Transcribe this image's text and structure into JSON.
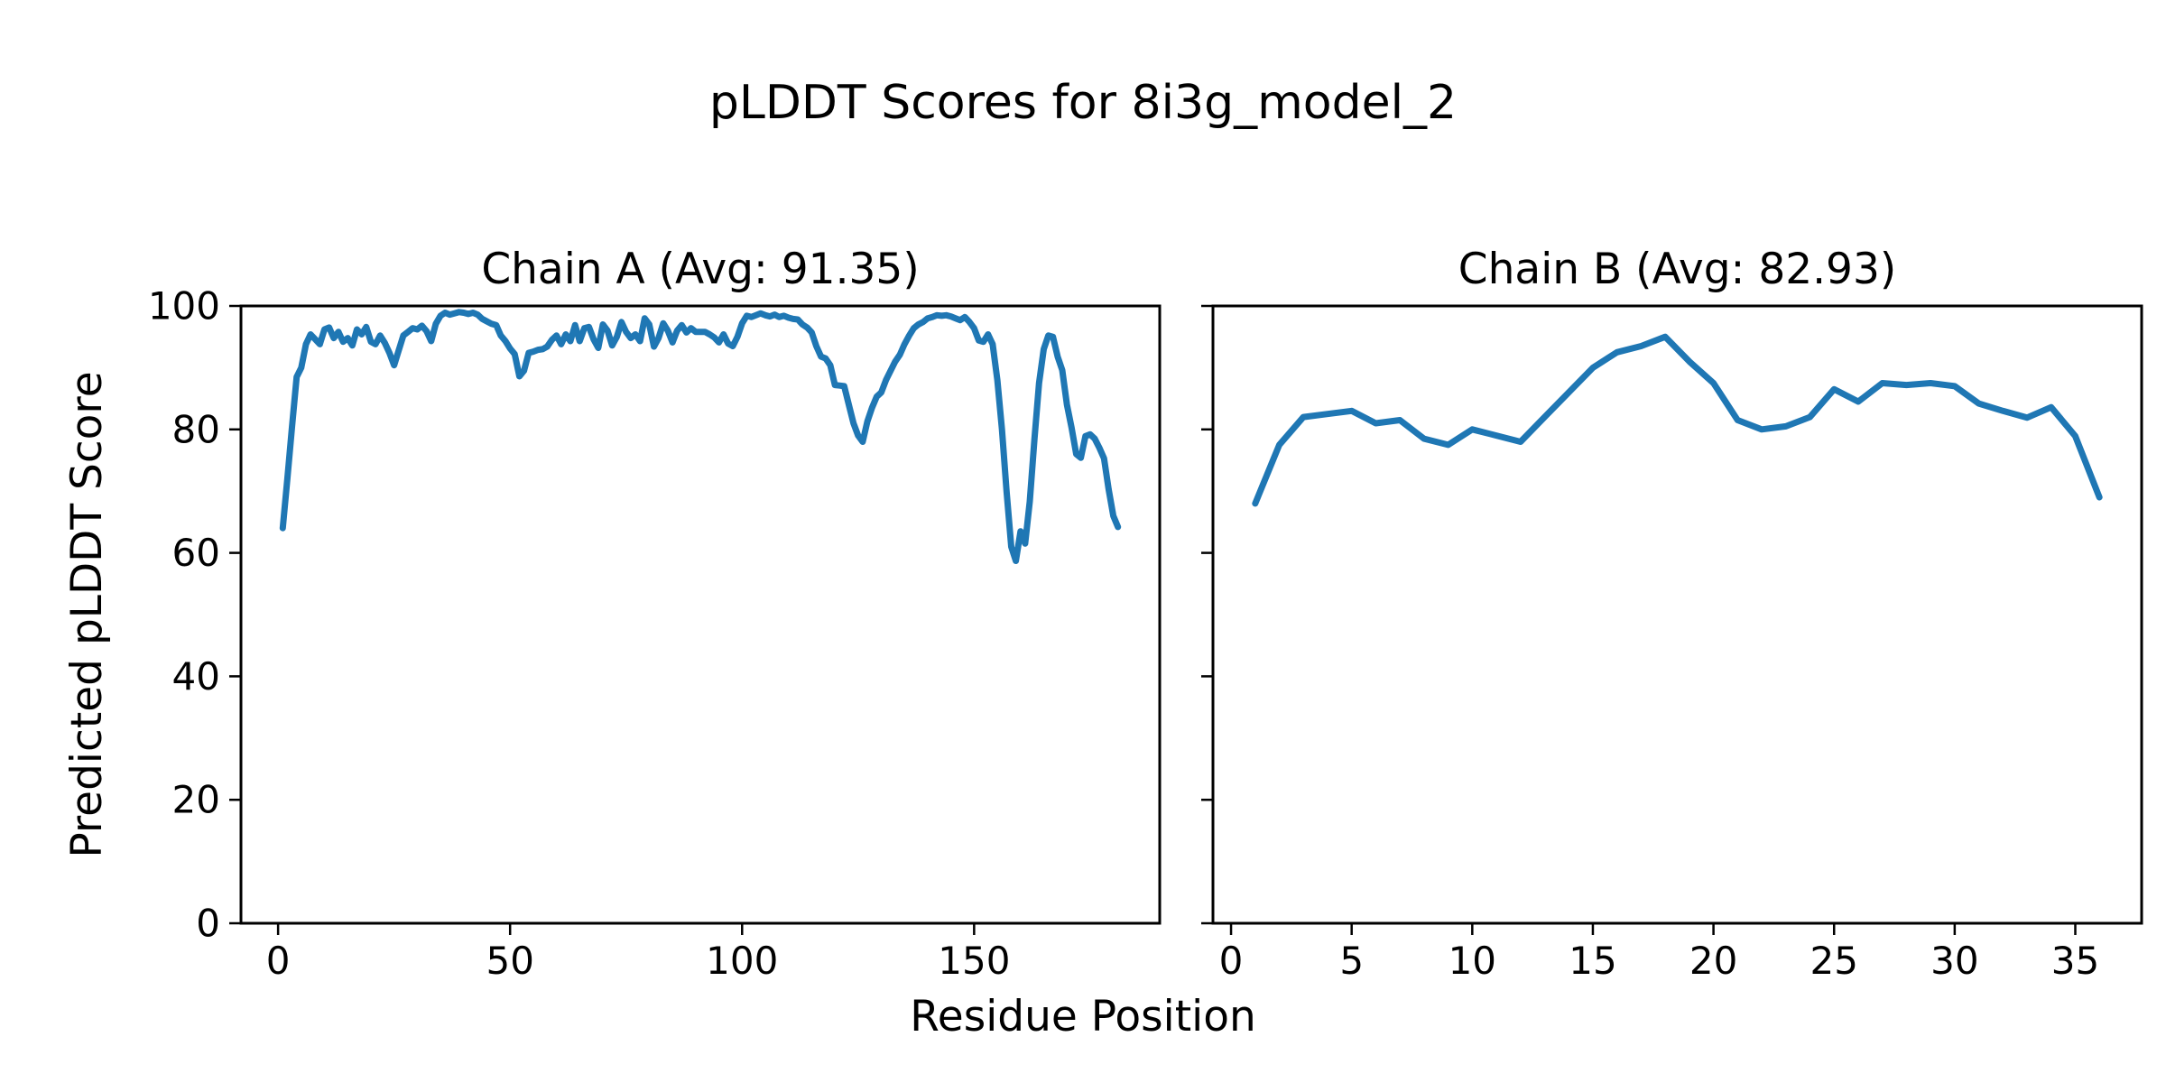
{
  "figure": {
    "title": "pLDDT Scores for 8i3g_model_2",
    "xlabel": "Residue Position",
    "ylabel": "Predicted pLDDT Score",
    "line_color": "#1f77b4",
    "axis_color": "#000000",
    "background": "#ffffff"
  },
  "chart_data": [
    {
      "type": "line",
      "title": "Chain A (Avg: 91.35)",
      "chain": "Chain A",
      "avg": 91.35,
      "xlabel": "Residue Position",
      "ylabel": "Predicted pLDDT Score",
      "xlim": [
        -8,
        190
      ],
      "ylim": [
        0,
        100
      ],
      "xticks": [
        0,
        50,
        100,
        150
      ],
      "yticks": [
        0,
        20,
        40,
        60,
        80,
        100
      ],
      "grid": false,
      "legend": null,
      "x_start": 1,
      "values": [
        64,
        72,
        80.5,
        88.5,
        90,
        93.8,
        95.4,
        94.6,
        93.8,
        96.2,
        96.5,
        94.8,
        95.8,
        94.2,
        94.8,
        93.6,
        96.2,
        95.4,
        96.6,
        94.2,
        93.8,
        95.2,
        94,
        92.4,
        90.4,
        92.8,
        95.2,
        95.8,
        96.4,
        96.2,
        96.8,
        95.9,
        94.3,
        97.1,
        98.4,
        98.9,
        98.6,
        98.8,
        99,
        98.9,
        98.7,
        98.9,
        98.6,
        97.9,
        97.5,
        97.1,
        96.9,
        95.2,
        94.3,
        93.1,
        92.2,
        88.6,
        89.5,
        92.4,
        92.6,
        92.9,
        93,
        93.4,
        94.5,
        95.2,
        93.8,
        95.4,
        94.3,
        96.9,
        94.3,
        96.4,
        96.6,
        94.6,
        93.2,
        97,
        96,
        93.6,
        95,
        97.4,
        95.8,
        94.8,
        95.4,
        94.3,
        98,
        97,
        93.4,
        94.8,
        97.2,
        96,
        94.1,
        96,
        96.9,
        95.7,
        96.4,
        95.8,
        95.8,
        95.8,
        95.4,
        94.9,
        94.1,
        95.4,
        93.9,
        93.5,
        95,
        97.2,
        98.4,
        98.2,
        98.5,
        98.8,
        98.5,
        98.3,
        98.6,
        98.2,
        98.4,
        98.1,
        97.9,
        97.8,
        97,
        96.5,
        95.7,
        93.5,
        91.8,
        91.5,
        90.4,
        87.2,
        87.1,
        87,
        84,
        81,
        79,
        78,
        81.3,
        83.5,
        85.3,
        86,
        88,
        89.5,
        91,
        92.1,
        93.8,
        95.2,
        96.4,
        97,
        97.4,
        98,
        98.2,
        98.5,
        98.4,
        98.5,
        98.3,
        98,
        97.7,
        98.2,
        97.4,
        96.4,
        94.4,
        94.2,
        95.4,
        93.8,
        88,
        80,
        70,
        61,
        58.7,
        63.5,
        61.5,
        68.3,
        78.4,
        87.5,
        93,
        95.2,
        95,
        91.8,
        89.6,
        84,
        80.3,
        76,
        75.4,
        78.9,
        79.2,
        78.5,
        77,
        75.3,
        70.3,
        66,
        64.2
      ]
    },
    {
      "type": "line",
      "title": "Chain B (Avg: 82.93)",
      "chain": "Chain B",
      "avg": 82.93,
      "xlabel": "Residue Position",
      "ylabel": "Predicted pLDDT Score",
      "xlim": [
        -0.75,
        37.75
      ],
      "ylim": [
        0,
        100
      ],
      "xticks": [
        0,
        5,
        10,
        15,
        20,
        25,
        30,
        35
      ],
      "yticks": [
        0,
        20,
        40,
        60,
        80,
        100
      ],
      "grid": false,
      "legend": null,
      "x_start": 1,
      "values": [
        68,
        77.5,
        82,
        82.5,
        83,
        81,
        81.5,
        78.5,
        77.5,
        80,
        79,
        78,
        82,
        86,
        90,
        92.5,
        93.5,
        95,
        91,
        87.5,
        81.5,
        80,
        80.5,
        82,
        86.5,
        84.5,
        87.5,
        87.2,
        87.5,
        87,
        84.2,
        83,
        81.9,
        83.6,
        78.9,
        69
      ]
    }
  ]
}
